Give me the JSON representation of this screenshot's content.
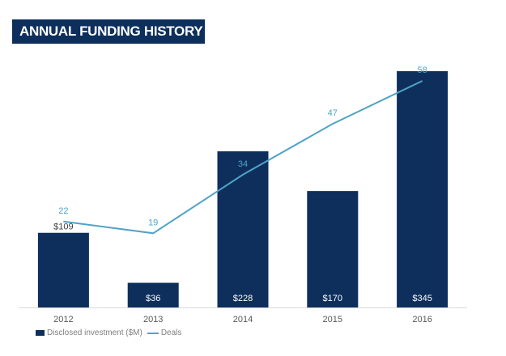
{
  "title": "ANNUAL FUNDING HISTORY",
  "colors": {
    "bar": "#0e2f5c",
    "line": "#4fa3c7",
    "axis": "#d9d9d9"
  },
  "chart_data": {
    "type": "bar",
    "title": "ANNUAL FUNDING HISTORY",
    "categories": [
      "2012",
      "2013",
      "2014",
      "2015",
      "2016"
    ],
    "series": [
      {
        "name": "Disclosed investment ($M)",
        "type": "bar",
        "values": [
          109,
          36,
          228,
          170,
          345
        ],
        "labels": [
          "$109",
          "$36",
          "$228",
          "$170",
          "$345"
        ]
      },
      {
        "name": "Deals",
        "type": "line",
        "values": [
          22,
          19,
          34,
          47,
          58
        ],
        "labels": [
          "22",
          "19",
          "34",
          "47",
          "58"
        ]
      }
    ],
    "ylim_bar": [
      0,
      345
    ],
    "ylim_line": [
      0,
      58
    ],
    "grid": false,
    "legend_position": "bottom-left"
  },
  "legend": [
    {
      "label": "Disclosed investment ($M)",
      "kind": "bar"
    },
    {
      "label": "Deals",
      "kind": "line"
    }
  ]
}
